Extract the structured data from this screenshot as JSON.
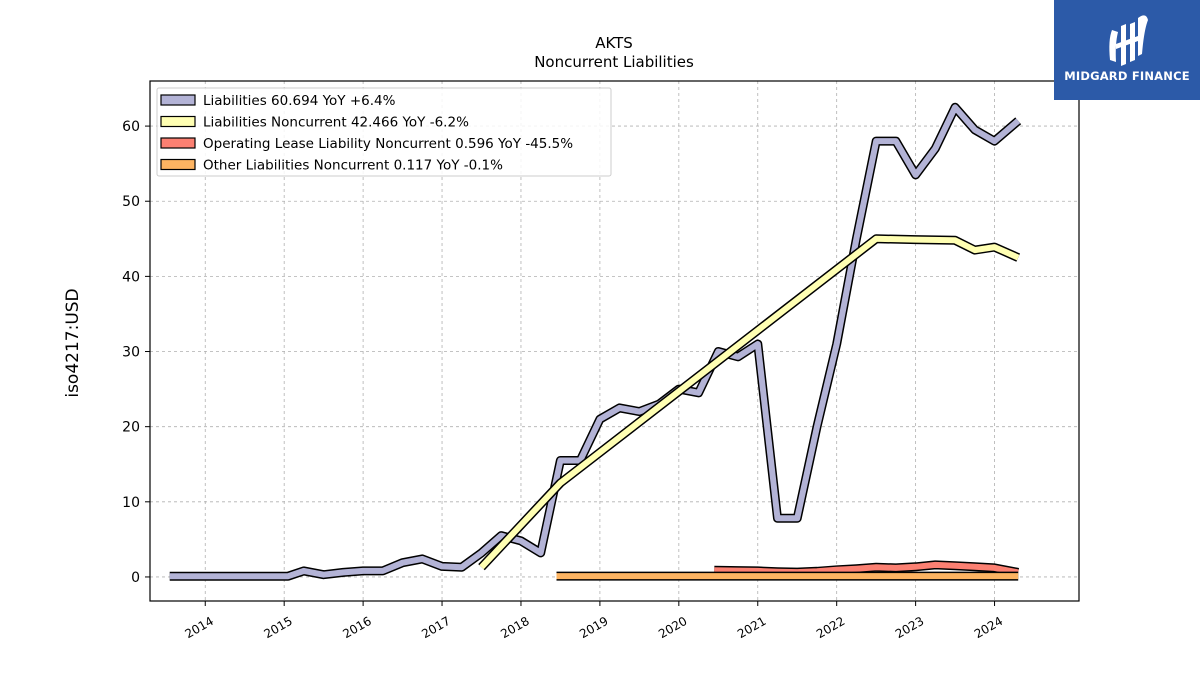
{
  "chart_data": {
    "type": "line",
    "title": "AKTS",
    "subtitle": "Noncurrent  Liabilities",
    "ylabel": "iso4217:USD",
    "xlabel": "",
    "xlim": [
      2013.3,
      2025.07
    ],
    "ylim": [
      -3.2,
      66
    ],
    "x_ticks": [
      2014,
      2015,
      2016,
      2017,
      2018,
      2019,
      2020,
      2021,
      2022,
      2023,
      2024
    ],
    "x_tick_labels": [
      "2014",
      "2015",
      "2016",
      "2017",
      "2018",
      "2019",
      "2020",
      "2021",
      "2022",
      "2023",
      "2024"
    ],
    "y_ticks": [
      0,
      10,
      20,
      30,
      40,
      50,
      60
    ],
    "y_tick_labels": [
      "0",
      "10",
      "20",
      "30",
      "40",
      "50",
      "60"
    ],
    "grid": true,
    "legend_position": "top-left",
    "series": [
      {
        "name": "Liabilities",
        "legend_label": "Liabilities  60.694 YoY +6.4%",
        "color": "#b3b3d6",
        "x": [
          2013.55,
          2014.55,
          2015.05,
          2015.25,
          2015.5,
          2015.75,
          2016.0,
          2016.25,
          2016.5,
          2016.75,
          2017.0,
          2017.25,
          2017.5,
          2017.75,
          2018.0,
          2018.25,
          2018.5,
          2018.75,
          2019.0,
          2019.25,
          2019.5,
          2019.75,
          2020.0,
          2020.25,
          2020.5,
          2020.75,
          2021.0,
          2021.25,
          2021.5,
          2021.75,
          2022.0,
          2022.25,
          2022.5,
          2022.75,
          2023.0,
          2023.25,
          2023.5,
          2023.75,
          2024.0,
          2024.3
        ],
        "values": [
          0.1,
          0.1,
          0.1,
          0.8,
          0.3,
          0.6,
          0.8,
          0.8,
          1.9,
          2.4,
          1.4,
          1.3,
          3.2,
          5.5,
          4.8,
          3.2,
          15.5,
          15.5,
          21.0,
          22.5,
          22.0,
          23.0,
          25.0,
          24.5,
          30.0,
          29.3,
          31.0,
          7.8,
          7.8,
          20.0,
          31.0,
          45.0,
          58.0,
          58.0,
          53.5,
          57.0,
          62.5,
          59.5,
          58.0,
          60.7
        ]
      },
      {
        "name": "Liabilities Noncurrent",
        "legend_label": "Liabilities Noncurrent  42.466 YoY -6.2%",
        "color": "#ffffb3",
        "x": [
          2017.5,
          2018.5,
          2022.5,
          2023.0,
          2023.5,
          2023.75,
          2024.0,
          2024.3
        ],
        "values": [
          1.3,
          12.5,
          45.0,
          44.9,
          44.8,
          43.5,
          43.9,
          42.5
        ]
      },
      {
        "name": "Operating Lease Liability Noncurrent",
        "legend_label": "Operating Lease Liability Noncurrent  0.596 YoY -45.5%",
        "color": "#fb8072",
        "x": [
          2020.45,
          2020.75,
          2021.0,
          2021.25,
          2021.5,
          2021.75,
          2022.0,
          2022.25,
          2022.5,
          2022.75,
          2023.0,
          2023.25,
          2023.5,
          2023.75,
          2024.0,
          2024.3
        ],
        "values": [
          0.9,
          0.85,
          0.8,
          0.7,
          0.65,
          0.75,
          0.95,
          1.1,
          1.3,
          1.2,
          1.35,
          1.6,
          1.5,
          1.35,
          1.2,
          0.6
        ]
      },
      {
        "name": "Other Liabilities Noncurrent",
        "legend_label": "Other Liabilities Noncurrent  0.117 YoY -0.1%",
        "color": "#fdb462",
        "x": [
          2018.45,
          2024.3
        ],
        "values": [
          0.117,
          0.117
        ]
      }
    ]
  },
  "logo": {
    "text": "MIDGARD FINANCE",
    "bg_color": "#2c5aa8"
  }
}
